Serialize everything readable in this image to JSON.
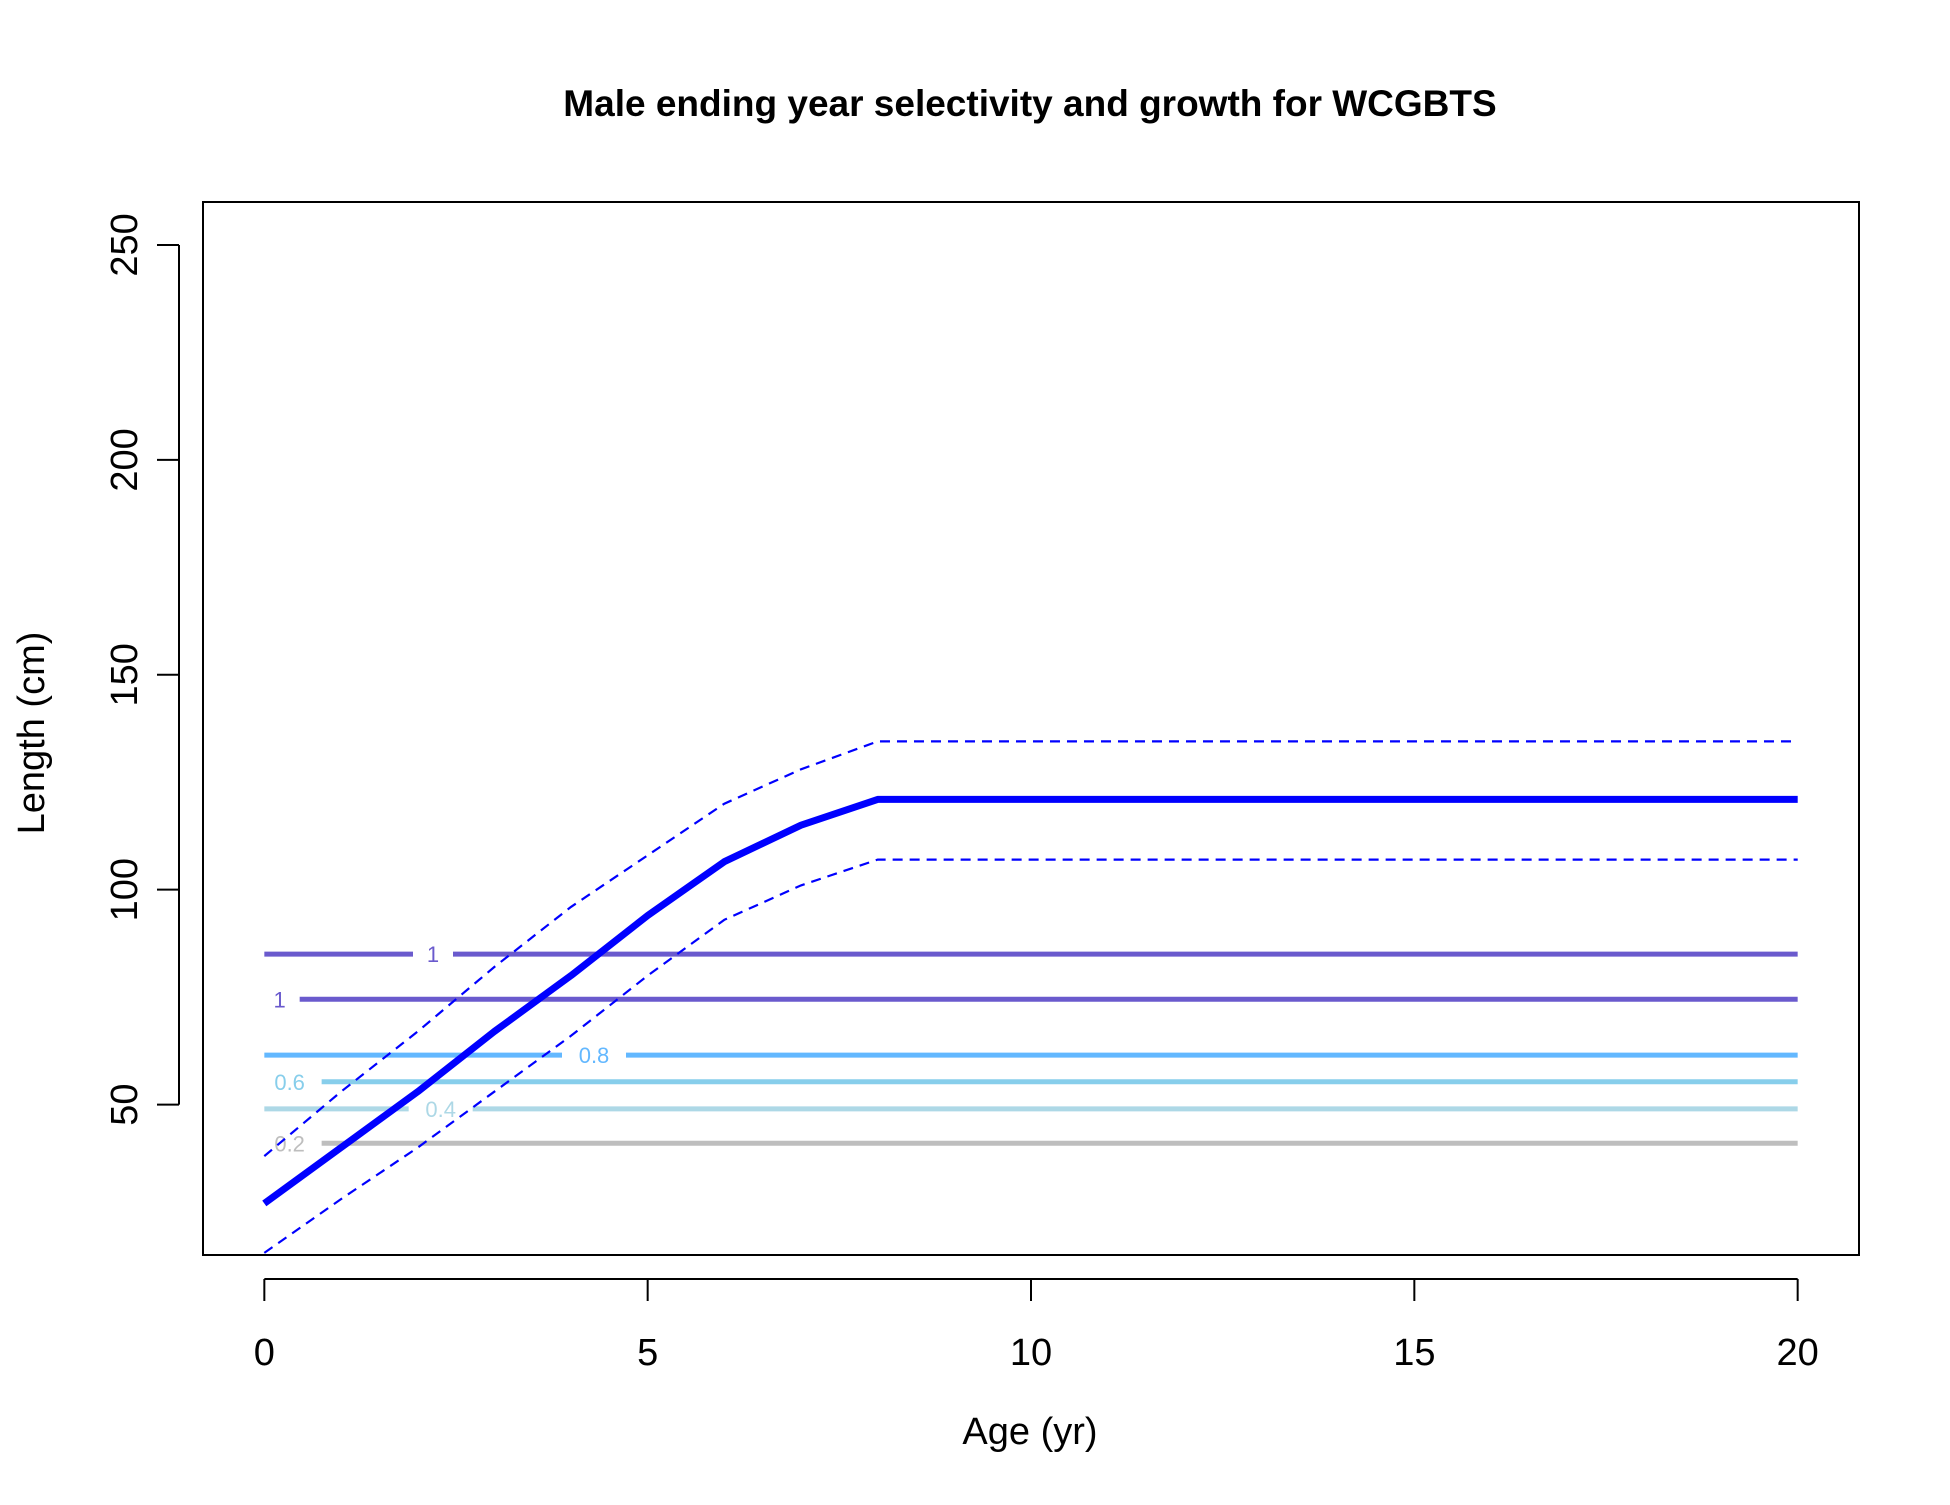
{
  "chart_data": {
    "type": "line",
    "title": "Male ending year selectivity and growth for WCGBTS",
    "xlabel": "Age (yr)",
    "ylabel": "Length (cm)",
    "xlim": [
      -0.8,
      20.8
    ],
    "ylim": [
      15,
      260
    ],
    "xticks": [
      "0",
      "5",
      "10",
      "15",
      "20"
    ],
    "yticks": [
      "50",
      "100",
      "150",
      "200",
      "250"
    ],
    "grid": false,
    "legend": "none",
    "growth": {
      "color": "#0000ff",
      "mean": {
        "x": [
          0,
          1,
          2,
          3,
          4,
          5,
          6,
          7,
          8,
          20
        ],
        "y": [
          27,
          40,
          53,
          67,
          80,
          94,
          106.5,
          115,
          121,
          121
        ]
      },
      "upper": {
        "x": [
          0,
          1,
          2,
          3,
          4,
          5,
          6,
          7,
          8,
          20
        ],
        "y": [
          38,
          53,
          67,
          82,
          96,
          108,
          120,
          128,
          134.5,
          134.5
        ]
      },
      "lower": {
        "x": [
          0,
          1,
          2,
          3,
          4,
          5,
          6,
          7,
          8,
          20
        ],
        "y": [
          15.5,
          28,
          40,
          53,
          66,
          80,
          93,
          101,
          107,
          107
        ]
      }
    },
    "contours": [
      {
        "label": "1",
        "y": 85,
        "color": "#6a5acd",
        "label_x": 2.2
      },
      {
        "label": "1",
        "y": 74.5,
        "color": "#6a5acd",
        "label_x": 0.2
      },
      {
        "label": "0.8",
        "y": 61.5,
        "color": "#63b8ff",
        "label_x": 4.3
      },
      {
        "label": "0.6",
        "y": 55.3,
        "color": "#87ceeb",
        "label_x": 0.33
      },
      {
        "label": "0.4",
        "y": 49,
        "color": "#add8e6",
        "label_x": 2.3
      },
      {
        "label": "0.2",
        "y": 41,
        "color": "#bebebe",
        "label_x": 0.33
      }
    ]
  }
}
